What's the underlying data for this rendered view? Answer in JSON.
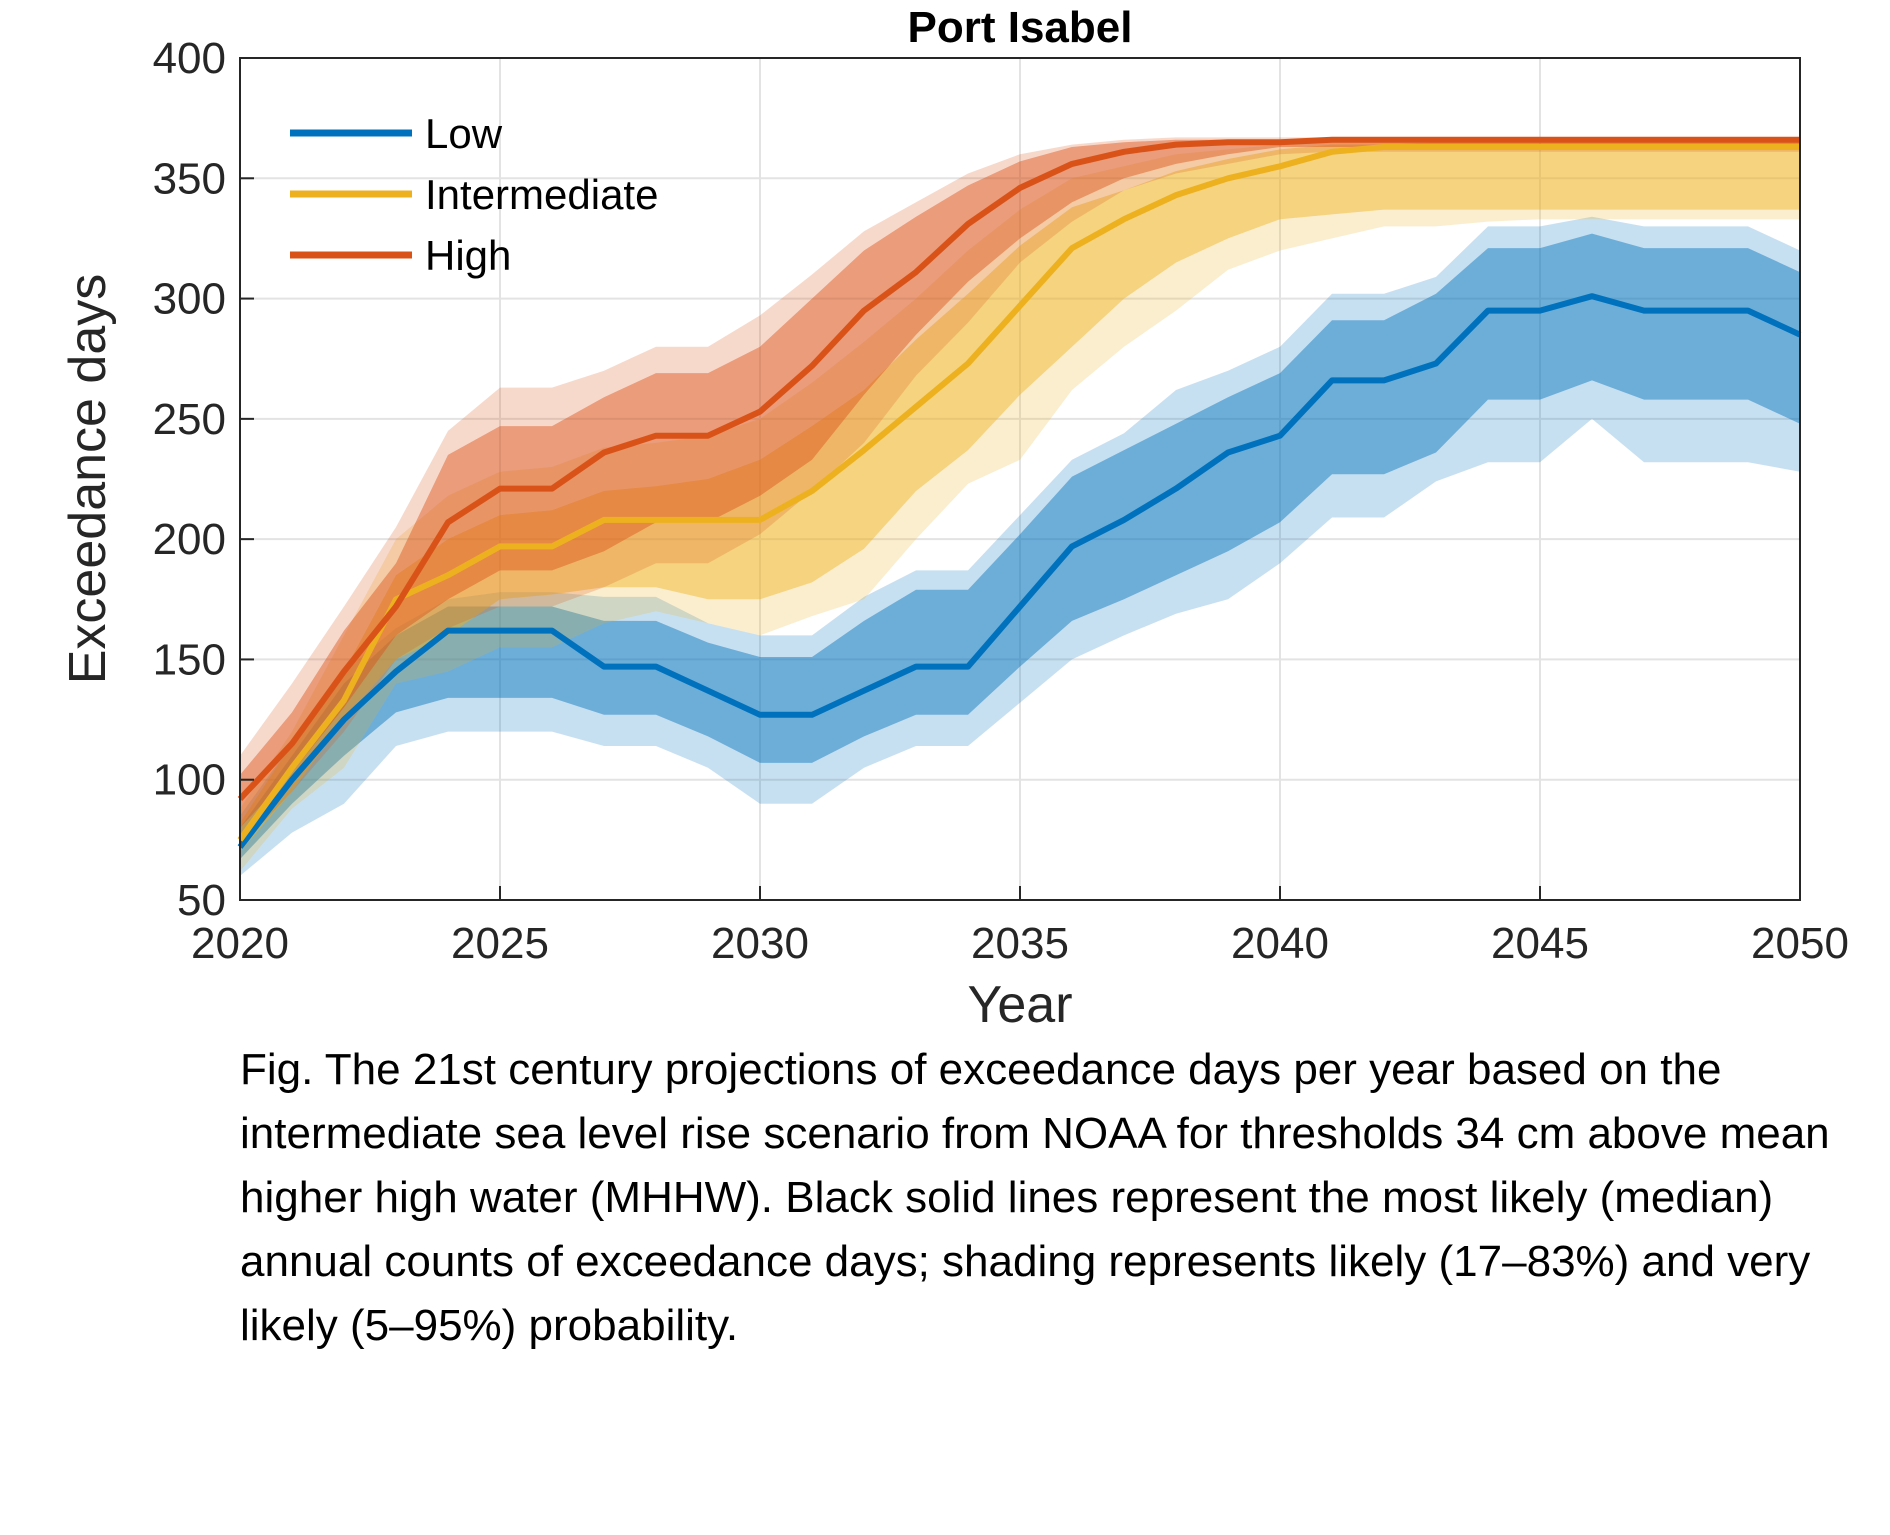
{
  "chart_data": {
    "type": "line",
    "title": "Port Isabel",
    "xlabel": "Year",
    "ylabel": "Exceedance days",
    "xlim": [
      2020,
      2050
    ],
    "ylim": [
      50,
      400
    ],
    "xticks": [
      2020,
      2025,
      2030,
      2035,
      2040,
      2045,
      2050
    ],
    "yticks": [
      50,
      100,
      150,
      200,
      250,
      300,
      350,
      400
    ],
    "grid": true,
    "legend_position": "top-left",
    "x": [
      2020,
      2021,
      2022,
      2023,
      2024,
      2025,
      2026,
      2027,
      2028,
      2029,
      2030,
      2031,
      2032,
      2033,
      2034,
      2035,
      2036,
      2037,
      2038,
      2039,
      2040,
      2041,
      2042,
      2043,
      2044,
      2045,
      2046,
      2047,
      2048,
      2049,
      2050
    ],
    "series": [
      {
        "name": "Low",
        "color": "#0072bd",
        "median": [
          72,
          100,
          125,
          145,
          162,
          162,
          162,
          147,
          147,
          137,
          127,
          127,
          137,
          147,
          147,
          172,
          197,
          208,
          221,
          236,
          243,
          266,
          266,
          273,
          295,
          295,
          301,
          295,
          295,
          295,
          285
        ],
        "likely_low": [
          67,
          90,
          110,
          128,
          134,
          134,
          134,
          127,
          127,
          118,
          107,
          107,
          118,
          127,
          127,
          147,
          166,
          175,
          185,
          195,
          207,
          227,
          227,
          236,
          258,
          258,
          266,
          258,
          258,
          258,
          248
        ],
        "likely_high": [
          80,
          110,
          140,
          160,
          172,
          172,
          172,
          166,
          166,
          157,
          151,
          151,
          166,
          179,
          179,
          202,
          226,
          237,
          248,
          259,
          269,
          291,
          291,
          302,
          321,
          321,
          327,
          321,
          321,
          321,
          311
        ],
        "very_likely_low": [
          60,
          78,
          90,
          114,
          120,
          120,
          120,
          114,
          114,
          105,
          90,
          90,
          105,
          114,
          114,
          132,
          150,
          160,
          169,
          175,
          190,
          209,
          209,
          224,
          232,
          232,
          250,
          232,
          232,
          232,
          228
        ],
        "very_likely_high": [
          85,
          115,
          145,
          163,
          175,
          178,
          178,
          176,
          176,
          165,
          160,
          160,
          176,
          187,
          187,
          210,
          233,
          244,
          262,
          270,
          280,
          302,
          302,
          309,
          330,
          330,
          334,
          330,
          330,
          330,
          320
        ]
      },
      {
        "name": "Intermediate",
        "color": "#edb120",
        "median": [
          75,
          105,
          133,
          175,
          185,
          197,
          197,
          208,
          208,
          208,
          208,
          220,
          237,
          255,
          273,
          297,
          321,
          333,
          343,
          350,
          355,
          361,
          363,
          363,
          363,
          363,
          363,
          363,
          363,
          363,
          363
        ],
        "likely_low": [
          70,
          95,
          125,
          150,
          160,
          175,
          177,
          180,
          180,
          175,
          175,
          182,
          196,
          220,
          237,
          260,
          280,
          300,
          315,
          325,
          333,
          335,
          337,
          337,
          337,
          337,
          337,
          337,
          337,
          337,
          337
        ],
        "likely_high": [
          82,
          115,
          145,
          185,
          200,
          210,
          212,
          220,
          222,
          225,
          233,
          247,
          262,
          283,
          302,
          322,
          338,
          345,
          353,
          358,
          362,
          364,
          364,
          365,
          365,
          365,
          365,
          365,
          365,
          365,
          365
        ],
        "very_likely_low": [
          62,
          88,
          105,
          140,
          145,
          155,
          155,
          165,
          170,
          165,
          160,
          168,
          175,
          200,
          223,
          233,
          262,
          280,
          295,
          312,
          320,
          325,
          330,
          330,
          332,
          333,
          333,
          333,
          333,
          333,
          333
        ],
        "very_likely_high": [
          88,
          120,
          160,
          200,
          218,
          228,
          230,
          238,
          240,
          243,
          250,
          265,
          282,
          300,
          320,
          337,
          350,
          355,
          360,
          362,
          364,
          365,
          365,
          366,
          366,
          366,
          366,
          366,
          366,
          366,
          366
        ]
      },
      {
        "name": "High",
        "color": "#d95319",
        "median": [
          92,
          115,
          145,
          172,
          207,
          221,
          221,
          236,
          243,
          243,
          253,
          272,
          295,
          311,
          331,
          346,
          356,
          361,
          364,
          365,
          365,
          366,
          366,
          366,
          366,
          366,
          366,
          366,
          366,
          366,
          366
        ],
        "likely_low": [
          80,
          103,
          130,
          160,
          175,
          187,
          187,
          195,
          207,
          207,
          218,
          233,
          260,
          285,
          307,
          325,
          340,
          350,
          356,
          360,
          363,
          363,
          363,
          363,
          363,
          363,
          363,
          363,
          363,
          363,
          363
        ],
        "likely_high": [
          102,
          128,
          162,
          190,
          235,
          247,
          247,
          259,
          269,
          269,
          280,
          300,
          320,
          334,
          347,
          357,
          363,
          365,
          366,
          366,
          366,
          366,
          366,
          366,
          366,
          366,
          366,
          366,
          366,
          366,
          366
        ],
        "very_likely_low": [
          72,
          95,
          120,
          150,
          163,
          172,
          172,
          180,
          190,
          190,
          202,
          220,
          240,
          268,
          290,
          315,
          332,
          345,
          352,
          356,
          360,
          361,
          361,
          361,
          361,
          361,
          361,
          361,
          361,
          361,
          361
        ],
        "very_likely_high": [
          110,
          140,
          172,
          205,
          245,
          263,
          263,
          270,
          280,
          280,
          293,
          310,
          328,
          340,
          352,
          360,
          364,
          366,
          367,
          367,
          367,
          367,
          367,
          367,
          367,
          367,
          367,
          367,
          367,
          367,
          367
        ]
      }
    ]
  },
  "caption": "Fig. The 21st century projections of exceedance days per year based on the intermediate sea level rise scenario from NOAA for thresholds 34 cm above mean higher high water (MHHW). Black solid lines represent the most likely (median) annual counts of exceedance days; shading represents likely (17–83%) and very likely (5–95%) probability."
}
